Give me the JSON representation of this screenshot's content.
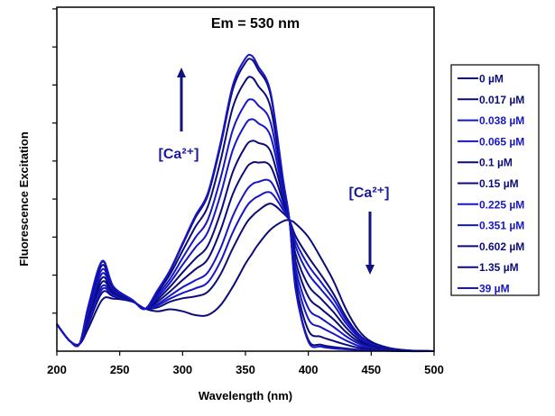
{
  "chart_data": {
    "type": "line",
    "title": "Em = 530 nm",
    "xlabel": "Wavelength (nm)",
    "ylabel": "Fluorescence Excitation",
    "xlim": [
      200,
      500
    ],
    "ylim": [
      0,
      9
    ],
    "xticks": [
      200,
      250,
      300,
      350,
      400,
      450,
      500
    ],
    "yticks_unlabeled": [
      1,
      2,
      3,
      4,
      5,
      6,
      7,
      8,
      9
    ],
    "grid": false,
    "legend_placement": "right",
    "annotations": [
      {
        "text": "[Ca²⁺]",
        "arrow": "up"
      },
      {
        "text": "[Ca²⁺]",
        "arrow": "down"
      }
    ],
    "x": [
      200,
      210,
      218,
      225,
      236,
      245,
      260,
      270,
      280,
      290,
      300,
      310,
      320,
      330,
      340,
      350,
      355,
      360,
      370,
      380,
      385,
      390,
      400,
      410,
      420,
      430,
      440,
      450,
      465,
      480,
      500
    ],
    "series": [
      {
        "name": "0 µM",
        "color": "#0c0c78",
        "values": [
          0.71,
          0.28,
          0.19,
          0.6,
          1.35,
          1.38,
          1.3,
          1.12,
          1.05,
          1.1,
          1.05,
          0.95,
          0.95,
          1.2,
          1.7,
          2.3,
          2.55,
          2.8,
          3.2,
          3.42,
          3.44,
          3.35,
          3.0,
          2.45,
          1.85,
          1.1,
          0.55,
          0.25,
          0.08,
          0.02,
          0
        ]
      },
      {
        "name": "0.017 µM",
        "color": "#0c0c78",
        "values": [
          0.71,
          0.28,
          0.19,
          0.71,
          1.54,
          1.44,
          1.31,
          1.12,
          1.15,
          1.3,
          1.39,
          1.44,
          1.56,
          2.01,
          2.71,
          3.33,
          3.54,
          3.69,
          3.88,
          3.63,
          3.44,
          3.02,
          2.48,
          2.01,
          1.51,
          0.9,
          0.45,
          0.21,
          0.07,
          0.02,
          0
        ]
      },
      {
        "name": "0.038 µM",
        "color": "#1616c8",
        "values": [
          0.71,
          0.28,
          0.19,
          0.76,
          1.63,
          1.47,
          1.31,
          1.12,
          1.2,
          1.38,
          1.53,
          1.65,
          1.81,
          2.35,
          3.13,
          3.76,
          3.96,
          4.07,
          4.17,
          3.71,
          3.44,
          2.88,
          2.26,
          1.82,
          1.37,
          0.82,
          0.41,
          0.19,
          0.06,
          0.02,
          0
        ]
      },
      {
        "name": "0.065 µM",
        "color": "#1616c8",
        "values": [
          0.71,
          0.28,
          0.19,
          0.8,
          1.71,
          1.49,
          1.32,
          1.12,
          1.24,
          1.46,
          1.68,
          1.86,
          2.07,
          2.69,
          3.56,
          4.19,
          4.38,
          4.45,
          4.46,
          3.8,
          3.44,
          2.74,
          2.04,
          1.63,
          1.23,
          0.73,
          0.37,
          0.17,
          0.06,
          0.01,
          0
        ]
      },
      {
        "name": "0.1 µM",
        "color": "#0c0c78",
        "values": [
          0.71,
          0.28,
          0.19,
          0.87,
          1.82,
          1.53,
          1.32,
          1.12,
          1.3,
          1.57,
          1.87,
          2.15,
          2.42,
          3.16,
          4.14,
          4.78,
          4.95,
          4.96,
          4.86,
          3.92,
          3.44,
          2.54,
          1.73,
          1.38,
          1.03,
          0.62,
          0.31,
          0.14,
          0.05,
          0.01,
          0
        ]
      },
      {
        "name": "0.15 µM",
        "color": "#0c0c78",
        "values": [
          0.71,
          0.28,
          0.19,
          0.93,
          1.93,
          1.56,
          1.33,
          1.11,
          1.36,
          1.69,
          2.07,
          2.43,
          2.77,
          3.62,
          4.72,
          5.38,
          5.53,
          5.48,
          5.25,
          4.04,
          3.44,
          2.35,
          1.43,
          1.12,
          0.84,
          0.5,
          0.25,
          0.12,
          0.04,
          0.01,
          0
        ]
      },
      {
        "name": "0.225 µM",
        "color": "#1616c8",
        "values": [
          0.71,
          0.28,
          0.19,
          0.99,
          2.04,
          1.6,
          1.33,
          1.11,
          1.42,
          1.8,
          2.27,
          2.72,
          3.13,
          4.09,
          5.3,
          5.97,
          6.1,
          6.0,
          5.65,
          4.15,
          3.44,
          2.16,
          1.13,
          0.87,
          0.64,
          0.39,
          0.2,
          0.09,
          0.03,
          0.01,
          0
        ]
      },
      {
        "name": "0.351 µM",
        "color": "#1616c8",
        "values": [
          0.71,
          0.28,
          0.19,
          1.05,
          2.15,
          1.63,
          1.34,
          1.11,
          1.48,
          1.9,
          2.45,
          2.98,
          3.45,
          4.52,
          5.83,
          6.51,
          6.62,
          6.47,
          6.01,
          4.26,
          3.44,
          1.98,
          0.85,
          0.63,
          0.46,
          0.28,
          0.14,
          0.07,
          0.03,
          0,
          0
        ]
      },
      {
        "name": "0.602 µM",
        "color": "#0c0c78",
        "values": [
          0.71,
          0.28,
          0.19,
          1.12,
          2.26,
          1.66,
          1.34,
          1.11,
          1.54,
          2.02,
          2.64,
          3.26,
          3.8,
          4.98,
          6.42,
          7.11,
          7.2,
          6.98,
          6.4,
          4.38,
          3.44,
          1.79,
          0.55,
          0.38,
          0.27,
          0.17,
          0.09,
          0.05,
          0.02,
          0,
          0
        ]
      },
      {
        "name": "1.35 µM",
        "color": "#0c0c78",
        "values": [
          0.71,
          0.28,
          0.19,
          1.17,
          2.35,
          1.69,
          1.35,
          1.11,
          1.59,
          2.11,
          2.8,
          3.5,
          4.09,
          5.37,
          6.89,
          7.59,
          7.67,
          7.41,
          6.73,
          4.48,
          3.44,
          1.63,
          0.3,
          0.17,
          0.11,
          0.07,
          0.04,
          0.02,
          0.01,
          0,
          0
        ]
      },
      {
        "name": "39 µM",
        "color": "#1616c8",
        "values": [
          0.71,
          0.28,
          0.19,
          1.18,
          2.37,
          1.7,
          1.35,
          1.11,
          1.6,
          2.13,
          2.84,
          3.55,
          4.15,
          5.45,
          7.0,
          7.7,
          7.77,
          7.5,
          6.8,
          4.5,
          3.44,
          1.6,
          0.25,
          0.12,
          0.07,
          0.05,
          0.03,
          0.02,
          0.01,
          0,
          0
        ]
      }
    ]
  }
}
